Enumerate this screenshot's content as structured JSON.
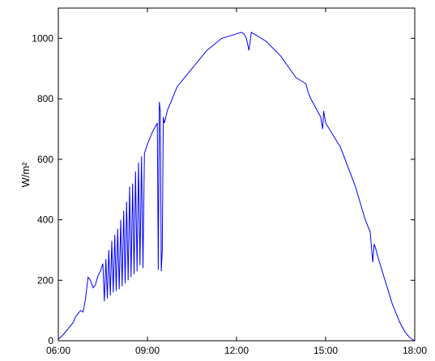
{
  "chart_data": {
    "type": "line",
    "title": "",
    "xlabel": "",
    "ylabel": "W/m²",
    "xlim": [
      "06:00",
      "18:00"
    ],
    "ylim": [
      0,
      1100
    ],
    "grid": false,
    "legend": "none",
    "x_ticks": [
      "06:00",
      "09:00",
      "12:00",
      "15:00",
      "18:00"
    ],
    "y_ticks": [
      0,
      200,
      400,
      600,
      800,
      1000
    ],
    "colors": {
      "line": "#0000ff",
      "axes": "#000000",
      "background": "#ffffff"
    },
    "series": [
      {
        "x": [
          "06:00",
          "06:10",
          "06:20",
          "06:30",
          "06:35",
          "06:40",
          "06:45",
          "06:50",
          "06:55",
          "07:00",
          "07:05",
          "07:10",
          "07:15",
          "07:20",
          "07:25",
          "07:30",
          "07:33",
          "07:36",
          "07:39",
          "07:42",
          "07:45",
          "07:48",
          "07:51",
          "07:54",
          "07:57",
          "08:00",
          "08:03",
          "08:06",
          "08:09",
          "08:12",
          "08:15",
          "08:18",
          "08:21",
          "08:24",
          "08:27",
          "08:30",
          "08:33",
          "08:36",
          "08:39",
          "08:42",
          "08:45",
          "08:48",
          "08:51",
          "08:54",
          "09:00",
          "09:10",
          "09:20",
          "09:22",
          "09:24",
          "09:26",
          "09:28",
          "09:30",
          "09:32",
          "09:34",
          "09:36",
          "09:40",
          "09:50",
          "10:00",
          "10:30",
          "11:00",
          "11:30",
          "12:00",
          "12:10",
          "12:15",
          "12:20",
          "12:25",
          "12:30",
          "12:40",
          "13:00",
          "13:30",
          "14:00",
          "14:15",
          "14:20",
          "14:25",
          "14:30",
          "14:40",
          "14:50",
          "14:54",
          "14:56",
          "15:00",
          "15:30",
          "16:00",
          "16:20",
          "16:30",
          "16:35",
          "16:38",
          "16:40",
          "16:42",
          "16:45",
          "17:00",
          "17:15",
          "17:30",
          "17:40",
          "17:50",
          "18:00"
        ],
        "y": [
          5,
          20,
          40,
          60,
          80,
          90,
          100,
          95,
          140,
          210,
          200,
          175,
          185,
          215,
          230,
          255,
          130,
          270,
          140,
          300,
          150,
          330,
          160,
          350,
          165,
          370,
          170,
          400,
          180,
          430,
          190,
          460,
          200,
          510,
          210,
          520,
          220,
          560,
          230,
          590,
          250,
          610,
          240,
          620,
          650,
          690,
          720,
          235,
          790,
          760,
          230,
          300,
          740,
          720,
          730,
          760,
          800,
          840,
          900,
          960,
          1000,
          1015,
          1020,
          1015,
          1000,
          960,
          1020,
          1010,
          990,
          940,
          870,
          855,
          850,
          820,
          800,
          770,
          740,
          700,
          760,
          720,
          640,
          510,
          400,
          360,
          260,
          320,
          310,
          300,
          280,
          200,
          120,
          60,
          30,
          10,
          0
        ]
      }
    ]
  }
}
